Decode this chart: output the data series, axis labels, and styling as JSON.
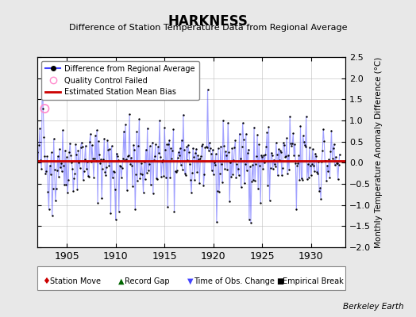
{
  "title": "HARKNESS",
  "subtitle": "Difference of Station Temperature Data from Regional Average",
  "ylabel": "Monthly Temperature Anomaly Difference (°C)",
  "xlim": [
    1902.0,
    1933.5
  ],
  "ylim": [
    -2.0,
    2.5
  ],
  "yticks": [
    -2,
    -1.5,
    -1,
    -0.5,
    0,
    0.5,
    1,
    1.5,
    2,
    2.5
  ],
  "xticks": [
    1905,
    1910,
    1915,
    1920,
    1925,
    1930
  ],
  "bias_value": 0.05,
  "background_color": "#e8e8e8",
  "plot_bg_color": "#ffffff",
  "line_color": "#4444ff",
  "line_alpha": 0.5,
  "dot_color": "#000000",
  "dot_size": 3,
  "bias_color": "#cc0000",
  "qc_failed_x": [
    1902.75
  ],
  "qc_failed_y": [
    1.28
  ],
  "seed": 42,
  "n_points": 372,
  "start_year": 1902.0
}
